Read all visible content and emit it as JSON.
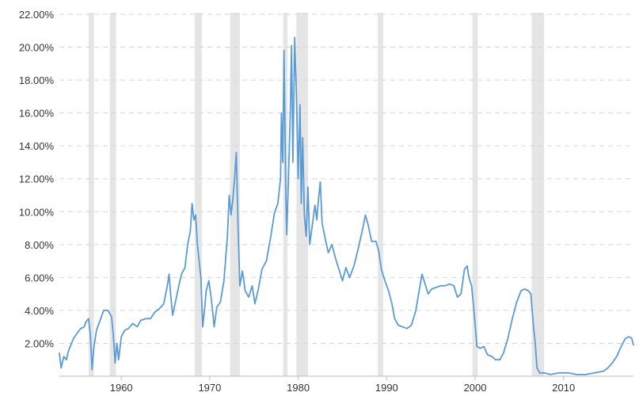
{
  "chart_data": {
    "type": "line",
    "title": "",
    "xlabel": "",
    "ylabel": "",
    "xlim": [
      1953.0,
      2017.9
    ],
    "ylim": [
      0,
      22
    ],
    "grid": "horizontal-dashed",
    "y_tick_labels": [
      "2.00%",
      "4.00%",
      "6.00%",
      "8.00%",
      "10.00%",
      "12.00%",
      "14.00%",
      "16.00%",
      "18.00%",
      "20.00%",
      "22.00%"
    ],
    "x_tick_labels": [
      "1960",
      "1970",
      "1980",
      "1990",
      "2000",
      "2010"
    ],
    "recessions": [
      [
        1956.3,
        1956.9
      ],
      [
        1958.7,
        1959.4
      ],
      [
        1968.3,
        1969.1
      ],
      [
        1972.3,
        1973.4
      ],
      [
        1978.3,
        1978.8
      ],
      [
        1979.8,
        1981.1
      ],
      [
        1989.0,
        1989.6
      ],
      [
        1999.7,
        2000.3
      ],
      [
        2006.4,
        2007.8
      ]
    ],
    "series": [
      {
        "points": [
          [
            1953.0,
            1.4
          ],
          [
            1953.2,
            0.5
          ],
          [
            1953.5,
            1.2
          ],
          [
            1953.8,
            1.0
          ],
          [
            1954.0,
            1.5
          ],
          [
            1954.3,
            1.9
          ],
          [
            1954.6,
            2.3
          ],
          [
            1955.0,
            2.6
          ],
          [
            1955.4,
            2.9
          ],
          [
            1955.8,
            3.0
          ],
          [
            1956.0,
            3.3
          ],
          [
            1956.3,
            3.5
          ],
          [
            1956.5,
            2.5
          ],
          [
            1956.7,
            0.4
          ],
          [
            1956.9,
            1.8
          ],
          [
            1957.2,
            2.8
          ],
          [
            1957.6,
            3.4
          ],
          [
            1958.0,
            4.0
          ],
          [
            1958.5,
            4.0
          ],
          [
            1958.9,
            3.6
          ],
          [
            1959.1,
            2.5
          ],
          [
            1959.3,
            0.8
          ],
          [
            1959.5,
            2.0
          ],
          [
            1959.7,
            1.0
          ],
          [
            1960.0,
            2.4
          ],
          [
            1960.4,
            2.8
          ],
          [
            1960.8,
            2.9
          ],
          [
            1961.3,
            3.2
          ],
          [
            1961.8,
            3.0
          ],
          [
            1962.2,
            3.4
          ],
          [
            1962.8,
            3.5
          ],
          [
            1963.3,
            3.5
          ],
          [
            1963.8,
            3.9
          ],
          [
            1964.3,
            4.1
          ],
          [
            1964.8,
            4.4
          ],
          [
            1965.2,
            5.5
          ],
          [
            1965.4,
            6.2
          ],
          [
            1965.6,
            4.8
          ],
          [
            1965.8,
            3.7
          ],
          [
            1966.0,
            4.2
          ],
          [
            1966.5,
            5.5
          ],
          [
            1966.8,
            6.2
          ],
          [
            1967.2,
            6.6
          ],
          [
            1967.5,
            8.0
          ],
          [
            1967.8,
            8.8
          ],
          [
            1968.0,
            10.5
          ],
          [
            1968.2,
            9.5
          ],
          [
            1968.4,
            9.8
          ],
          [
            1968.6,
            8.0
          ],
          [
            1968.8,
            7.0
          ],
          [
            1969.0,
            6.0
          ],
          [
            1969.2,
            3.0
          ],
          [
            1969.4,
            4.0
          ],
          [
            1969.6,
            5.2
          ],
          [
            1969.9,
            5.8
          ],
          [
            1970.2,
            4.6
          ],
          [
            1970.5,
            3.0
          ],
          [
            1970.8,
            4.2
          ],
          [
            1971.2,
            4.5
          ],
          [
            1971.6,
            5.8
          ],
          [
            1972.0,
            8.5
          ],
          [
            1972.2,
            11.0
          ],
          [
            1972.4,
            9.8
          ],
          [
            1972.6,
            10.7
          ],
          [
            1972.8,
            12.0
          ],
          [
            1973.0,
            13.6
          ],
          [
            1973.2,
            9.0
          ],
          [
            1973.4,
            5.5
          ],
          [
            1973.7,
            6.4
          ],
          [
            1974.0,
            5.2
          ],
          [
            1974.4,
            4.8
          ],
          [
            1974.8,
            5.5
          ],
          [
            1975.1,
            4.4
          ],
          [
            1975.5,
            5.3
          ],
          [
            1975.9,
            6.5
          ],
          [
            1976.4,
            7.0
          ],
          [
            1976.9,
            8.5
          ],
          [
            1977.3,
            9.9
          ],
          [
            1977.7,
            10.5
          ],
          [
            1978.0,
            12.0
          ],
          [
            1978.1,
            16.0
          ],
          [
            1978.25,
            13.0
          ],
          [
            1978.4,
            19.8
          ],
          [
            1978.6,
            11.0
          ],
          [
            1978.7,
            8.6
          ],
          [
            1978.9,
            12.0
          ],
          [
            1979.1,
            16.0
          ],
          [
            1979.25,
            20.1
          ],
          [
            1979.4,
            13.0
          ],
          [
            1979.6,
            20.6
          ],
          [
            1979.8,
            17.0
          ],
          [
            1980.0,
            12.0
          ],
          [
            1980.2,
            16.5
          ],
          [
            1980.35,
            10.5
          ],
          [
            1980.5,
            14.5
          ],
          [
            1980.7,
            9.8
          ],
          [
            1980.9,
            8.5
          ],
          [
            1981.1,
            11.5
          ],
          [
            1981.3,
            8.0
          ],
          [
            1981.6,
            9.2
          ],
          [
            1981.9,
            10.4
          ],
          [
            1982.1,
            9.5
          ],
          [
            1982.3,
            10.8
          ],
          [
            1982.5,
            11.8
          ],
          [
            1982.7,
            9.3
          ],
          [
            1983.0,
            8.5
          ],
          [
            1983.4,
            7.5
          ],
          [
            1983.8,
            8.0
          ],
          [
            1984.2,
            7.2
          ],
          [
            1984.6,
            6.5
          ],
          [
            1985.0,
            5.8
          ],
          [
            1985.4,
            6.6
          ],
          [
            1985.8,
            6.0
          ],
          [
            1986.3,
            6.7
          ],
          [
            1986.8,
            7.8
          ],
          [
            1987.3,
            9.0
          ],
          [
            1987.6,
            9.8
          ],
          [
            1987.9,
            9.2
          ],
          [
            1988.3,
            8.2
          ],
          [
            1988.8,
            8.2
          ],
          [
            1989.1,
            7.6
          ],
          [
            1989.4,
            6.5
          ],
          [
            1989.8,
            5.8
          ],
          [
            1990.2,
            5.2
          ],
          [
            1990.6,
            4.4
          ],
          [
            1990.9,
            3.5
          ],
          [
            1991.3,
            3.1
          ],
          [
            1991.8,
            3.0
          ],
          [
            1992.3,
            2.9
          ],
          [
            1992.8,
            3.1
          ],
          [
            1993.3,
            4.0
          ],
          [
            1993.7,
            5.3
          ],
          [
            1994.0,
            6.2
          ],
          [
            1994.4,
            5.5
          ],
          [
            1994.7,
            5.0
          ],
          [
            1995.1,
            5.3
          ],
          [
            1995.6,
            5.4
          ],
          [
            1996.1,
            5.5
          ],
          [
            1996.6,
            5.5
          ],
          [
            1997.1,
            5.6
          ],
          [
            1997.6,
            5.5
          ],
          [
            1998.0,
            4.8
          ],
          [
            1998.4,
            5.0
          ],
          [
            1998.8,
            6.5
          ],
          [
            1999.1,
            6.7
          ],
          [
            1999.3,
            6.0
          ],
          [
            1999.6,
            5.5
          ],
          [
            1999.9,
            3.8
          ],
          [
            2000.2,
            1.8
          ],
          [
            2000.6,
            1.7
          ],
          [
            2001.0,
            1.8
          ],
          [
            2001.4,
            1.3
          ],
          [
            2001.9,
            1.2
          ],
          [
            2002.3,
            1.0
          ],
          [
            2002.8,
            1.0
          ],
          [
            2003.2,
            1.4
          ],
          [
            2003.7,
            2.3
          ],
          [
            2004.2,
            3.5
          ],
          [
            2004.7,
            4.5
          ],
          [
            2005.2,
            5.2
          ],
          [
            2005.6,
            5.3
          ],
          [
            2006.0,
            5.2
          ],
          [
            2006.3,
            5.0
          ],
          [
            2006.6,
            3.0
          ],
          [
            2006.8,
            2.0
          ],
          [
            2007.0,
            0.5
          ],
          [
            2007.3,
            0.2
          ],
          [
            2007.8,
            0.2
          ],
          [
            2008.5,
            0.1
          ],
          [
            2009.5,
            0.2
          ],
          [
            2010.5,
            0.2
          ],
          [
            2011.5,
            0.1
          ],
          [
            2012.5,
            0.1
          ],
          [
            2013.5,
            0.2
          ],
          [
            2014.5,
            0.3
          ],
          [
            2015.0,
            0.5
          ],
          [
            2015.5,
            0.8
          ],
          [
            2016.0,
            1.2
          ],
          [
            2016.5,
            1.8
          ],
          [
            2017.0,
            2.3
          ],
          [
            2017.4,
            2.4
          ],
          [
            2017.7,
            2.3
          ],
          [
            2017.9,
            1.9
          ]
        ]
      }
    ]
  },
  "colors": {
    "line": "#5b9bd5",
    "recession": "#e5e5e5",
    "grid": "#d6d6d6",
    "text": "#333333"
  }
}
